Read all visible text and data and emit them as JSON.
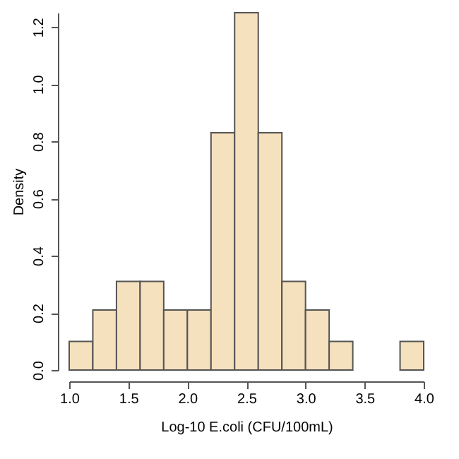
{
  "chart_data": {
    "type": "histogram",
    "xlabel": "Log-10 E.coli (CFU/100mL)",
    "ylabel": "Density",
    "bins": [
      1.0,
      1.2,
      1.4,
      1.6,
      1.8,
      2.0,
      2.2,
      2.4,
      2.6,
      2.8,
      3.0,
      3.2,
      3.4,
      3.6,
      3.8,
      4.0
    ],
    "values": [
      0.1,
      0.21,
      0.31,
      0.31,
      0.21,
      0.21,
      0.83,
      1.25,
      0.83,
      0.31,
      0.21,
      0.1,
      0,
      0,
      0.1
    ],
    "color": "#f5e1bd",
    "xlim": [
      1.0,
      4.0
    ],
    "xticks": [
      {
        "value": 1.0,
        "label": "1.0"
      },
      {
        "value": 1.5,
        "label": "1.5"
      },
      {
        "value": 2.0,
        "label": "2.0"
      },
      {
        "value": 2.5,
        "label": "2.5"
      },
      {
        "value": 3.0,
        "label": "3.0"
      },
      {
        "value": 3.5,
        "label": "3.5"
      },
      {
        "value": 4.0,
        "label": "4.0"
      }
    ],
    "ylim": [
      0,
      1.25
    ],
    "yticks": [
      {
        "value": 0,
        "label": "0.0"
      },
      {
        "value": 0.2,
        "label": "0.2"
      },
      {
        "value": 0.4,
        "label": "0.4"
      },
      {
        "value": 0.6,
        "label": "0.6"
      },
      {
        "value": 0.8,
        "label": "0.8"
      },
      {
        "value": 1.0,
        "label": "1.0"
      },
      {
        "value": 1.2,
        "label": "1.2"
      }
    ],
    "grid": false
  }
}
